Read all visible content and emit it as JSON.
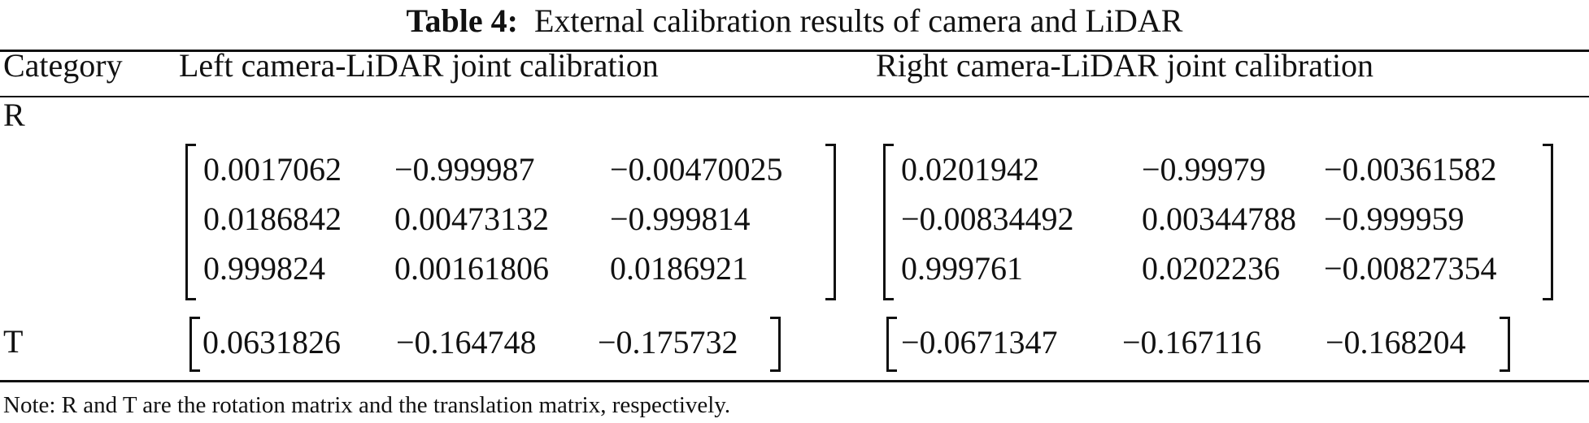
{
  "caption": {
    "label": "Table 4:",
    "text": "External calibration results of camera and LiDAR"
  },
  "table": {
    "headers": [
      "Category",
      "Left camera-LiDAR joint calibration",
      "Right camera-LiDAR joint calibration"
    ],
    "rows": [
      {
        "category": "R",
        "left": [
          [
            "0.0017062",
            "−0.999987",
            "−0.00470025"
          ],
          [
            "0.0186842",
            "0.00473132",
            "−0.999814"
          ],
          [
            "0.999824",
            "0.00161806",
            "0.0186921"
          ]
        ],
        "right": [
          [
            "0.0201942",
            "−0.99979",
            "−0.00361582"
          ],
          [
            "−0.00834492",
            "0.00344788",
            "−0.999959"
          ],
          [
            "0.999761",
            "0.0202236",
            "−0.00827354"
          ]
        ]
      },
      {
        "category": "T",
        "left": [
          [
            "0.0631826",
            "−0.164748",
            "−0.175732"
          ]
        ],
        "right": [
          [
            "−0.0671347",
            "−0.167116",
            "−0.168204"
          ]
        ]
      }
    ]
  },
  "note": "Note: R and T are the rotation matrix and the translation matrix, respectively."
}
